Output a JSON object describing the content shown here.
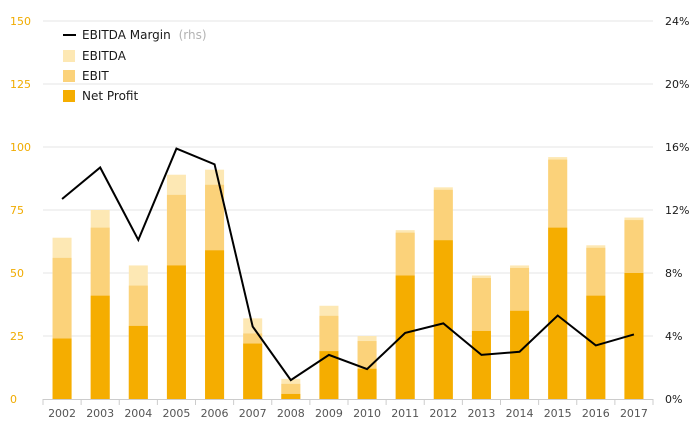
{
  "chart_data": {
    "type": "bar",
    "categories": [
      "2002",
      "2003",
      "2004",
      "2005",
      "2006",
      "2007",
      "2008",
      "2009",
      "2010",
      "2011",
      "2012",
      "2013",
      "2014",
      "2015",
      "2016",
      "2017"
    ],
    "series": [
      {
        "name": "EBITDA",
        "values": [
          64,
          75,
          53,
          89,
          91,
          32,
          8,
          37,
          25,
          67,
          84,
          49,
          53,
          96,
          61,
          72
        ],
        "color": "#fde8b4",
        "kind": "bar"
      },
      {
        "name": "EBIT",
        "values": [
          56,
          68,
          45,
          81,
          85,
          26,
          6,
          33,
          23,
          66,
          83,
          48,
          52,
          95,
          60,
          71
        ],
        "color": "#fbd27a",
        "kind": "bar"
      },
      {
        "name": "Net Profit",
        "values": [
          24,
          41,
          29,
          53,
          59,
          22,
          2,
          19,
          12,
          49,
          63,
          27,
          35,
          68,
          41,
          50
        ],
        "color": "#f5ad00",
        "kind": "bar"
      },
      {
        "name": "EBITDA Margin",
        "note": "(rhs)",
        "values": [
          12.7,
          14.7,
          10.1,
          15.9,
          14.9,
          4.6,
          1.2,
          2.8,
          1.9,
          4.2,
          4.8,
          2.8,
          3.0,
          5.3,
          3.4,
          4.1
        ],
        "color": "#000000",
        "kind": "line",
        "axis": "right"
      }
    ],
    "y_left": {
      "ticks": [
        "0",
        "25",
        "50",
        "75",
        "100",
        "125",
        "150"
      ],
      "ylim": [
        0,
        150
      ]
    },
    "y_right": {
      "ticks": [
        "0%",
        "4%",
        "8%",
        "12%",
        "16%",
        "20%",
        "24%"
      ],
      "ylim": [
        0,
        24
      ]
    },
    "grid": true,
    "legend_position": "top-left",
    "colors": {
      "left_axis_text": "#f0ab00",
      "grid": "#e6e6e6"
    }
  },
  "legend": {
    "line_label": "EBITDA Margin",
    "line_note": "(rhs)",
    "ebitda_label": "EBITDA",
    "ebit_label": "EBIT",
    "net_label": "Net Profit"
  }
}
